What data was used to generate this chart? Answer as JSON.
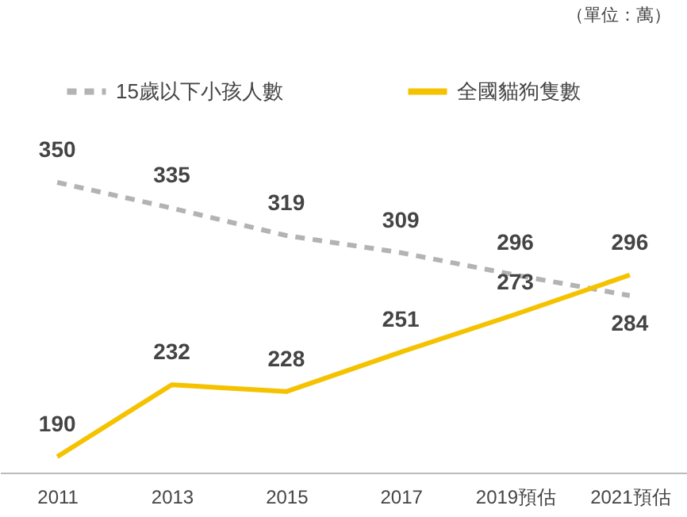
{
  "chart_data": {
    "type": "line",
    "categories": [
      "2011",
      "2013",
      "2015",
      "2017",
      "2019預估",
      "2021預估"
    ],
    "series": [
      {
        "name": "15歲以下小孩人數",
        "color": "#b3b3b3",
        "line_style": "dashed",
        "values": [
          350,
          335,
          319,
          309,
          296,
          284
        ]
      },
      {
        "name": "全國貓狗隻數",
        "color": "#f5c200",
        "line_style": "solid",
        "values": [
          190,
          232,
          228,
          251,
          273,
          296
        ]
      }
    ],
    "data_labels": true,
    "legend": "top",
    "grid": false,
    "marker": "none",
    "annotations": [
      "（單位：萬）"
    ]
  }
}
